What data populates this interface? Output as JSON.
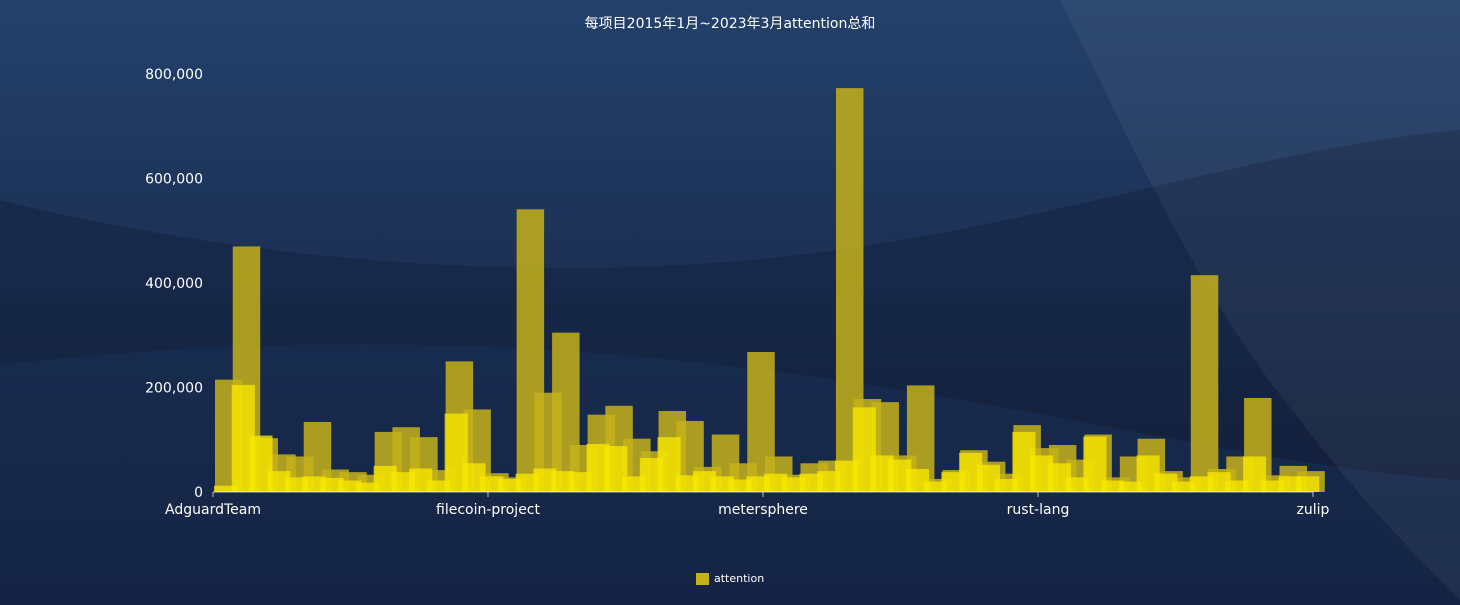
{
  "colors": {
    "background_top": "#23416b",
    "background_bottom": "#141c38",
    "bar_back": "#c4b21a",
    "bar_front": "#f7e600",
    "text": "#ffffff"
  },
  "chart_data": {
    "type": "bar",
    "title": "每项目2015年1月~2023年3月attention总和",
    "xlabel": "",
    "ylabel": "",
    "ylim": [
      0,
      800000
    ],
    "y_ticks": [
      0,
      200000,
      400000,
      600000,
      800000
    ],
    "y_tick_labels": [
      "0",
      "200,000",
      "400,000",
      "600,000",
      "800,000"
    ],
    "x_tick_labels": [
      "AdguardTeam",
      "filecoin-project",
      "metersphere",
      "rust-lang",
      "zulip"
    ],
    "x_range": [
      "AdguardTeam",
      "zulip"
    ],
    "grid": false,
    "legend_position": "bottom-center",
    "series": [
      {
        "name": "attention",
        "color": "#c4b21a"
      }
    ],
    "values": [
      215000,
      470000,
      103000,
      72000,
      68000,
      134000,
      43000,
      38000,
      33000,
      115000,
      124000,
      105000,
      42000,
      250000,
      158000,
      36000,
      28000,
      541000,
      190000,
      305000,
      90000,
      148000,
      165000,
      102000,
      78000,
      155000,
      136000,
      48000,
      110000,
      55000,
      268000,
      68000,
      33000,
      55000,
      60000,
      773000,
      178000,
      172000,
      70000,
      204000,
      25000,
      42000,
      80000,
      58000,
      35000,
      128000,
      84000,
      90000,
      62000,
      110000,
      28000,
      68000,
      102000,
      40000,
      28000,
      415000,
      44000,
      68000,
      180000,
      32000,
      50000,
      40000
    ],
    "overlay_values": [
      12000,
      205000,
      108000,
      40000,
      28000,
      30000,
      27000,
      22000,
      18000,
      50000,
      38000,
      45000,
      22000,
      150000,
      55000,
      30000,
      25000,
      35000,
      45000,
      40000,
      38000,
      92000,
      88000,
      30000,
      65000,
      105000,
      32000,
      40000,
      30000,
      24000,
      30000,
      35000,
      28000,
      35000,
      40000,
      60000,
      162000,
      70000,
      62000,
      44000,
      20000,
      38000,
      75000,
      52000,
      25000,
      115000,
      70000,
      55000,
      28000,
      106000,
      22000,
      20000,
      70000,
      35000,
      20000,
      30000,
      38000,
      22000,
      68000,
      22000,
      30000,
      30000
    ]
  }
}
